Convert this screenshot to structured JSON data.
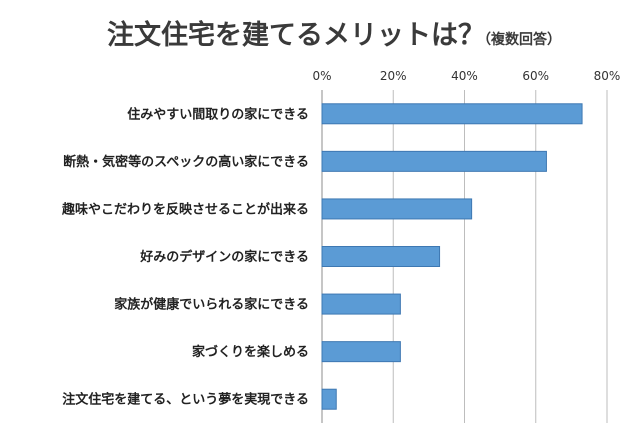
{
  "chart_data": {
    "type": "bar",
    "orientation": "horizontal",
    "title": "注文住宅を建てるメリットは？",
    "subtitle": "（複数回答）",
    "xlim": [
      0,
      80
    ],
    "tick_values": [
      0,
      20,
      40,
      60,
      80
    ],
    "tick_labels": [
      "0%",
      "20%",
      "40%",
      "60%",
      "80%"
    ],
    "grid": true,
    "bar_color": "#5b9bd5",
    "categories": [
      "住みやすい間取りの家にできる",
      "断熱・気密等のスペックの高い家にできる",
      "趣味やこだわりを反映させることが出来る",
      "好みのデザインの家にできる",
      "家族が健康でいられる家にできる",
      "家づくりを楽しめる",
      "注文住宅を建てる、という夢を実現できる"
    ],
    "values": [
      73,
      63,
      42,
      33,
      22,
      22,
      4
    ]
  }
}
